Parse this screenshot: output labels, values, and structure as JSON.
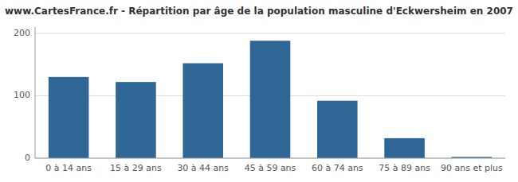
{
  "chart_data": {
    "type": "bar",
    "title": "www.CartesFrance.fr - Répartition par âge de la population masculine d'Eckwersheim en 2007",
    "categories": [
      "0 à 14 ans",
      "15 à 29 ans",
      "30 à 44 ans",
      "45 à 59 ans",
      "60 à 74 ans",
      "75 à 89 ans",
      "90 ans et plus"
    ],
    "values": [
      130,
      122,
      152,
      188,
      92,
      32,
      2
    ],
    "color": "#2e6695",
    "ylim": [
      0,
      210
    ],
    "yticks": [
      0,
      100,
      200
    ],
    "grid": true
  }
}
